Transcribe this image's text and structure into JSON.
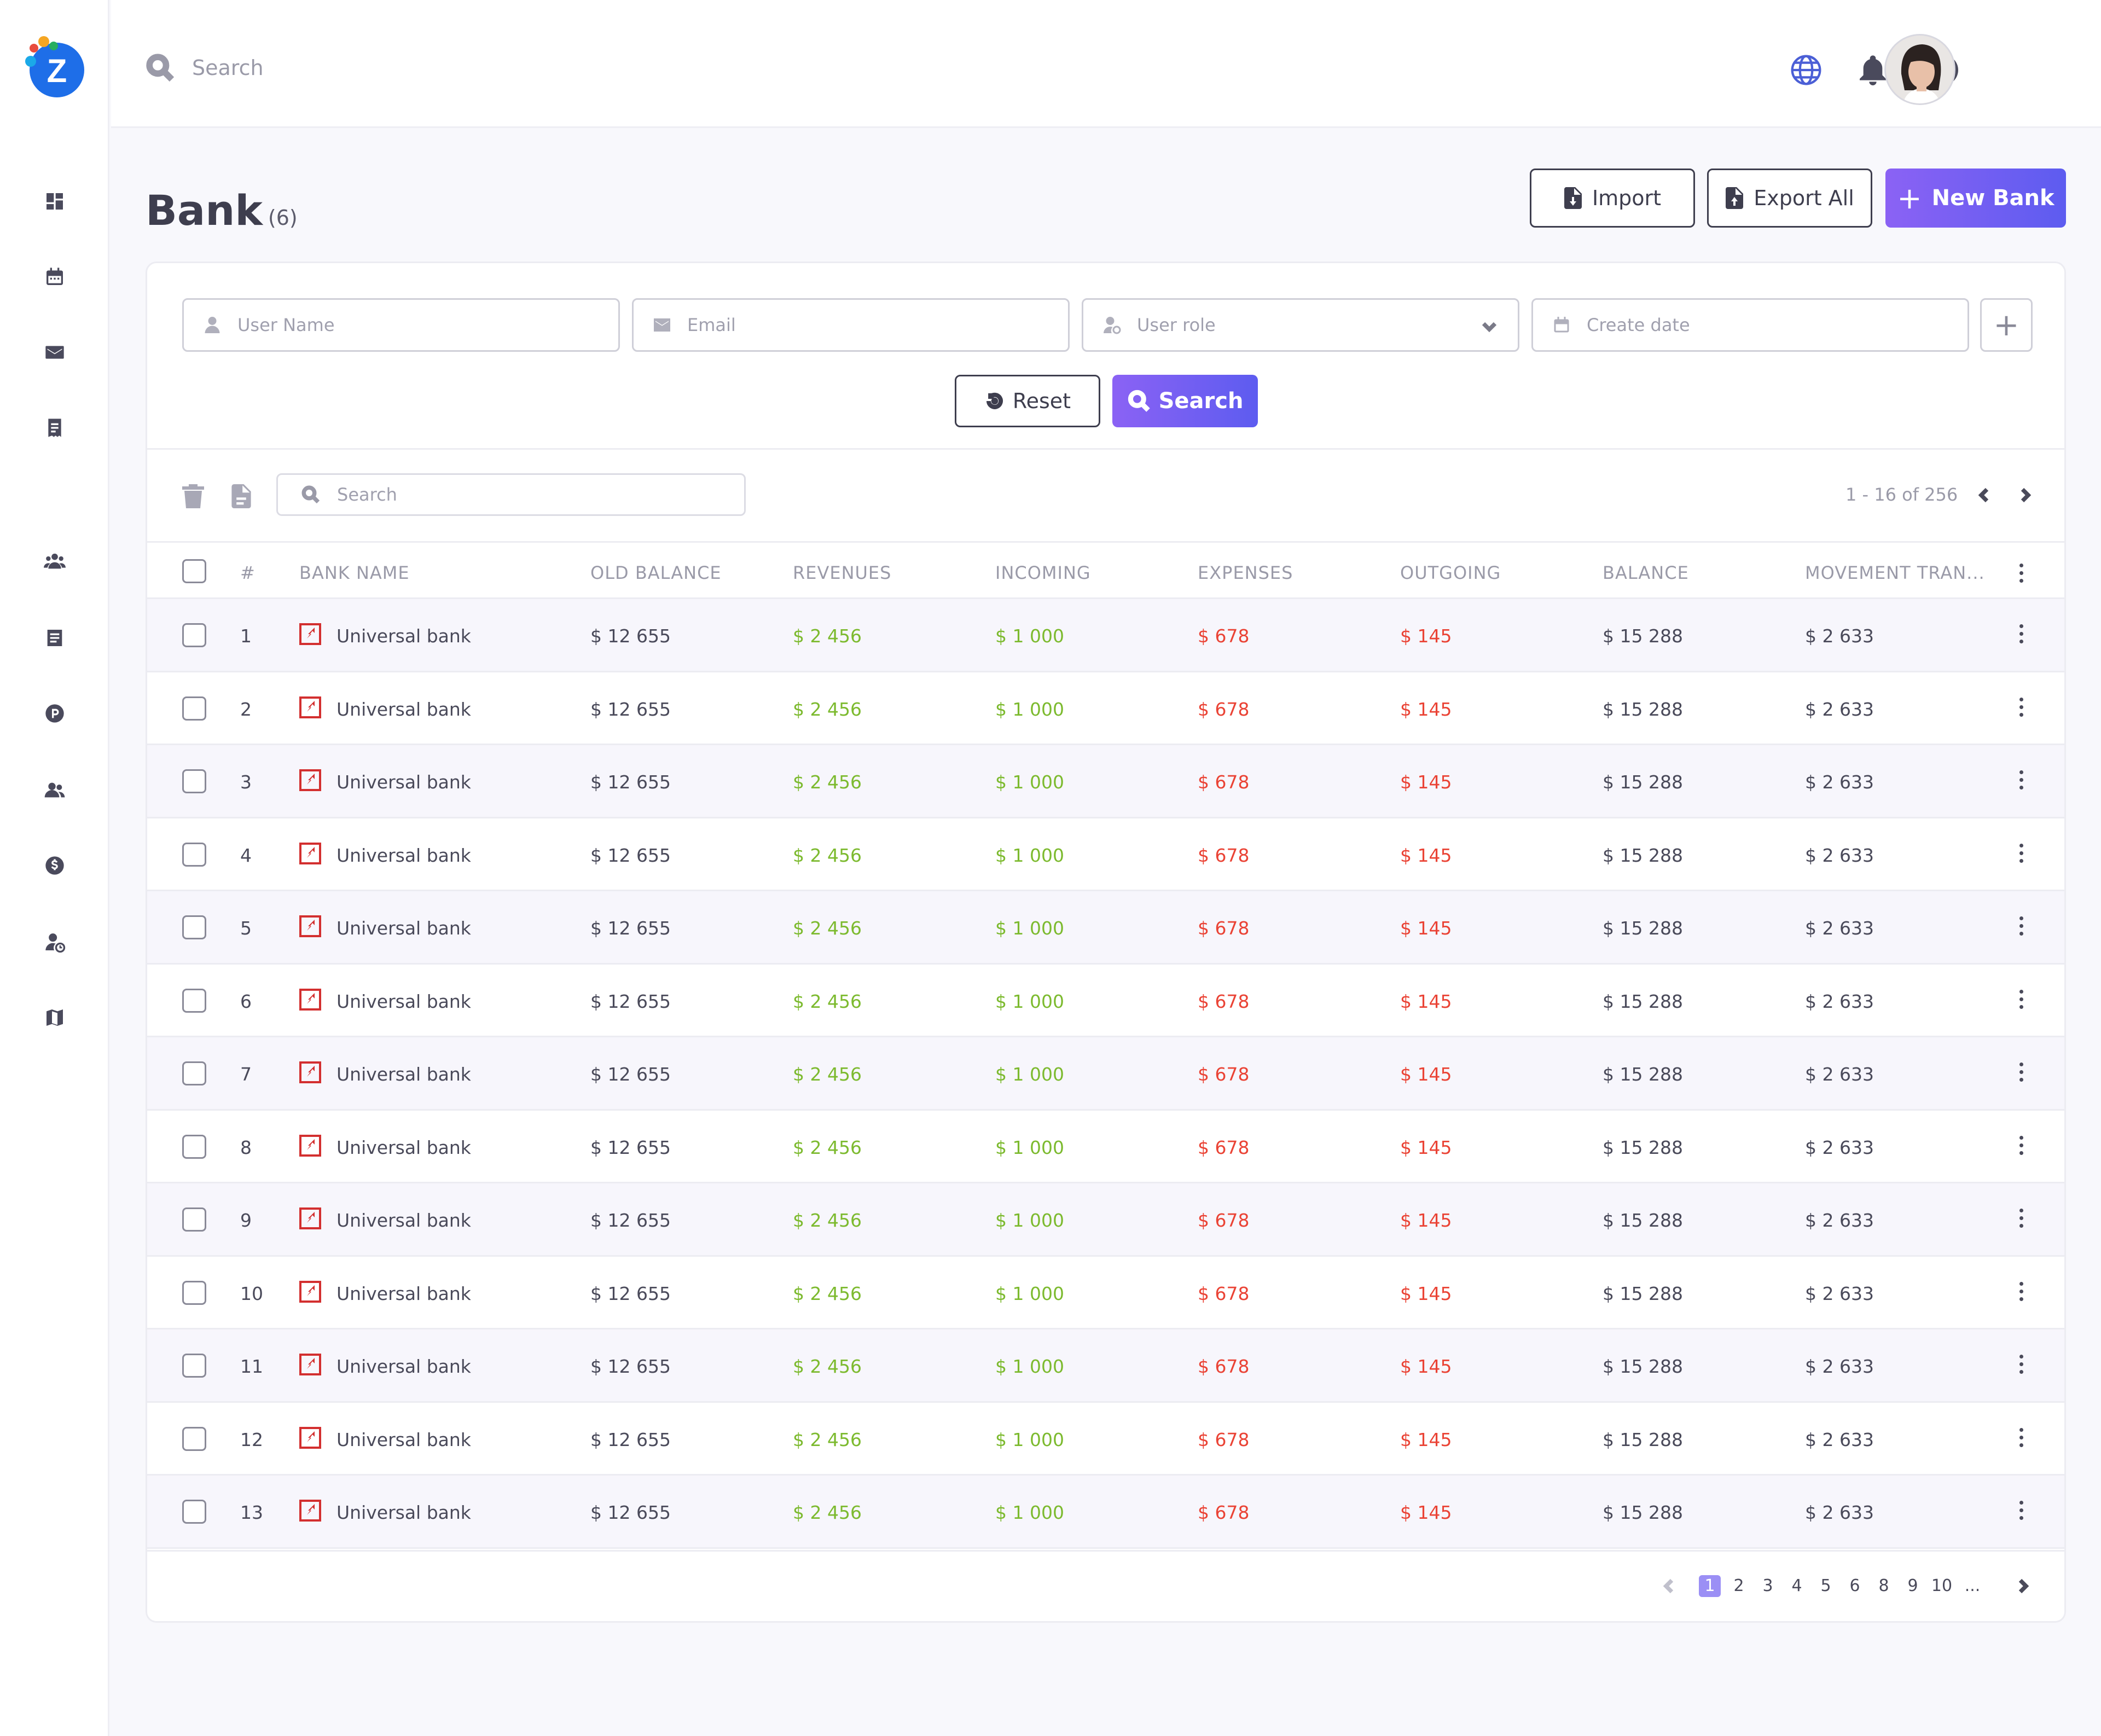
{
  "app": {
    "logo_letter": "Z"
  },
  "topbar": {
    "search_placeholder": "Search"
  },
  "page": {
    "title": "Bank",
    "count": "(6)"
  },
  "actions": {
    "import": "Import",
    "export": "Export All",
    "new": "New Bank"
  },
  "filters": {
    "username": "User Name",
    "email": "Email",
    "role": "User role",
    "date": "Create date",
    "reset": "Reset",
    "search": "Search"
  },
  "toolbar": {
    "search_placeholder": "Search",
    "range": "1 - 16 of 256"
  },
  "columns": [
    "#",
    "BANK NAME",
    "OLD BALANCE",
    "REVENUES",
    "INCOMING",
    "EXPENSES",
    "OUTGOING",
    "BALANCE",
    "MOVEMENT TRAN..."
  ],
  "rows": [
    {
      "n": "1",
      "name": "Universal bank",
      "old": "$ 12 655",
      "rev": "$ 2 456",
      "inc": "$ 1 000",
      "exp": "$ 678",
      "out": "$ 145",
      "bal": "$ 15 288",
      "mov": "$ 2 633"
    },
    {
      "n": "2",
      "name": "Universal bank",
      "old": "$ 12 655",
      "rev": "$ 2 456",
      "inc": "$ 1 000",
      "exp": "$ 678",
      "out": "$ 145",
      "bal": "$ 15 288",
      "mov": "$ 2 633"
    },
    {
      "n": "3",
      "name": "Universal bank",
      "old": "$ 12 655",
      "rev": "$ 2 456",
      "inc": "$ 1 000",
      "exp": "$ 678",
      "out": "$ 145",
      "bal": "$ 15 288",
      "mov": "$ 2 633"
    },
    {
      "n": "4",
      "name": "Universal bank",
      "old": "$ 12 655",
      "rev": "$ 2 456",
      "inc": "$ 1 000",
      "exp": "$ 678",
      "out": "$ 145",
      "bal": "$ 15 288",
      "mov": "$ 2 633"
    },
    {
      "n": "5",
      "name": "Universal bank",
      "old": "$ 12 655",
      "rev": "$ 2 456",
      "inc": "$ 1 000",
      "exp": "$ 678",
      "out": "$ 145",
      "bal": "$ 15 288",
      "mov": "$ 2 633"
    },
    {
      "n": "6",
      "name": "Universal bank",
      "old": "$ 12 655",
      "rev": "$ 2 456",
      "inc": "$ 1 000",
      "exp": "$ 678",
      "out": "$ 145",
      "bal": "$ 15 288",
      "mov": "$ 2 633"
    },
    {
      "n": "7",
      "name": "Universal bank",
      "old": "$ 12 655",
      "rev": "$ 2 456",
      "inc": "$ 1 000",
      "exp": "$ 678",
      "out": "$ 145",
      "bal": "$ 15 288",
      "mov": "$ 2 633"
    },
    {
      "n": "8",
      "name": "Universal bank",
      "old": "$ 12 655",
      "rev": "$ 2 456",
      "inc": "$ 1 000",
      "exp": "$ 678",
      "out": "$ 145",
      "bal": "$ 15 288",
      "mov": "$ 2 633"
    },
    {
      "n": "9",
      "name": "Universal bank",
      "old": "$ 12 655",
      "rev": "$ 2 456",
      "inc": "$ 1 000",
      "exp": "$ 678",
      "out": "$ 145",
      "bal": "$ 15 288",
      "mov": "$ 2 633"
    },
    {
      "n": "10",
      "name": "Universal bank",
      "old": "$ 12 655",
      "rev": "$ 2 456",
      "inc": "$ 1 000",
      "exp": "$ 678",
      "out": "$ 145",
      "bal": "$ 15 288",
      "mov": "$ 2 633"
    },
    {
      "n": "11",
      "name": "Universal bank",
      "old": "$ 12 655",
      "rev": "$ 2 456",
      "inc": "$ 1 000",
      "exp": "$ 678",
      "out": "$ 145",
      "bal": "$ 15 288",
      "mov": "$ 2 633"
    },
    {
      "n": "12",
      "name": "Universal bank",
      "old": "$ 12 655",
      "rev": "$ 2 456",
      "inc": "$ 1 000",
      "exp": "$ 678",
      "out": "$ 145",
      "bal": "$ 15 288",
      "mov": "$ 2 633"
    },
    {
      "n": "13",
      "name": "Universal bank",
      "old": "$ 12 655",
      "rev": "$ 2 456",
      "inc": "$ 1 000",
      "exp": "$ 678",
      "out": "$ 145",
      "bal": "$ 15 288",
      "mov": "$ 2 633"
    }
  ],
  "pagination": {
    "pages": [
      "1",
      "2",
      "3",
      "4",
      "5",
      "6",
      "8",
      "9",
      "10",
      "..."
    ],
    "current": "1"
  },
  "colors": {
    "accent": "#7b61f4",
    "positive": "#7cba2e",
    "negative": "#ea4335",
    "bank_icon": "#d32f2f"
  },
  "icons": {
    "topbar": [
      "search-icon",
      "globe-icon",
      "bell-icon",
      "help-icon"
    ],
    "sidebar": [
      "dashboard-icon",
      "calendar-icon",
      "mail-icon",
      "invoice-icon",
      "users-group-icon",
      "document-icon",
      "parking-icon",
      "contacts-icon",
      "dollar-icon",
      "user-settings-icon",
      "map-icon"
    ]
  }
}
